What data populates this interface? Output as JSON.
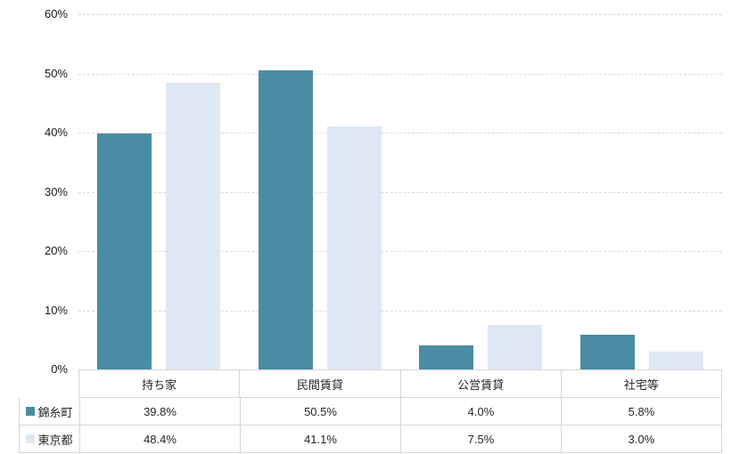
{
  "chart_data": {
    "type": "bar",
    "title": "",
    "xlabel": "",
    "ylabel": "",
    "categories": [
      "持ち家",
      "民間賃貸",
      "公営賃貸",
      "社宅等"
    ],
    "series": [
      {
        "name": "錦糸町",
        "color": "#4A8CA4",
        "values": [
          39.8,
          50.5,
          4.0,
          5.8
        ],
        "labels": [
          "39.8%",
          "50.5%",
          "4.0%",
          "5.8%"
        ]
      },
      {
        "name": "東京都",
        "color": "#DEE8F4",
        "values": [
          48.4,
          41.1,
          7.5,
          3.0
        ],
        "labels": [
          "48.4%",
          "41.1%",
          "7.5%",
          "3.0%"
        ]
      }
    ],
    "ylim": [
      0,
      60
    ],
    "yticks": [
      0,
      10,
      20,
      30,
      40,
      50,
      60
    ],
    "ytick_labels": [
      "0%",
      "10%",
      "20%",
      "30%",
      "40%",
      "50%",
      "60%"
    ],
    "grid": "horizontal-dashed",
    "gridline_color": "#D9D9D9",
    "legend_position": "data-table-left",
    "data_table_shown": true
  }
}
